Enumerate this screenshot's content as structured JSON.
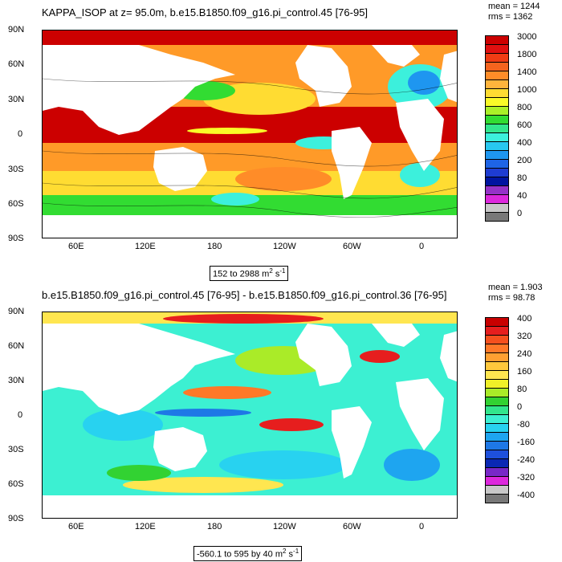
{
  "panel1": {
    "title": "KAPPA_ISOP at z=  95.0m, b.e15.B1850.f09_g16.pi_control.45 [76-95]",
    "mean": "mean = 1244",
    "rms": "rms = 1362",
    "range_prefix": "152 to 2988 m",
    "range_exp": "2",
    "range_unit": " s",
    "range_exp2": "-1",
    "lat_ticks": [
      "90N",
      "60N",
      "30N",
      "0",
      "30S",
      "60S",
      "90S"
    ],
    "lon_ticks": [
      "60E",
      "120E",
      "180",
      "120W",
      "60W",
      "0"
    ],
    "colorbar": {
      "labels": [
        "3000",
        "1800",
        "1400",
        "1000",
        "800",
        "600",
        "400",
        "200",
        "80",
        "40",
        "0"
      ],
      "colors": [
        "#cc0000",
        "#e01010",
        "#f03c14",
        "#f5641e",
        "#ff8c28",
        "#ffb43c",
        "#ffdc32",
        "#fafa28",
        "#aaf028",
        "#32dc32",
        "#32e68c",
        "#3cf0dc",
        "#28c8f0",
        "#1e96f0",
        "#1e64e6",
        "#1e3cd2",
        "#0014a0",
        "#9632c8",
        "#dc28dc",
        "#c8c8c8",
        "#787878"
      ]
    }
  },
  "panel2": {
    "title": "b.e15.B1850.f09_g16.pi_control.45 [76-95] - b.e15.B1850.f09_g16.pi_control.36 [76-95]",
    "mean": "mean = 1.903",
    "rms": "rms = 98.78",
    "range_prefix": "-560.1 to 595 by 40 m",
    "range_exp": "2",
    "range_unit": " s",
    "range_exp2": "-1",
    "lat_ticks": [
      "90N",
      "60N",
      "30N",
      "0",
      "30S",
      "60S",
      "90S"
    ],
    "lon_ticks": [
      "60E",
      "120E",
      "180",
      "120W",
      "60W",
      "0"
    ],
    "colorbar": {
      "labels": [
        "400",
        "320",
        "240",
        "160",
        "80",
        "0",
        "-80",
        "-160",
        "-240",
        "-320",
        "-400"
      ],
      "colors": [
        "#c80000",
        "#e61e1e",
        "#f5501e",
        "#ff7828",
        "#ffa032",
        "#ffc83c",
        "#ffe650",
        "#f0f028",
        "#aaeb28",
        "#32d232",
        "#32e68c",
        "#3cf0d2",
        "#28d2f0",
        "#1ea5f0",
        "#1e78e6",
        "#1e50dc",
        "#0a28b4",
        "#7828c8",
        "#dc28dc",
        "#c8c8c8",
        "#787878"
      ]
    }
  }
}
